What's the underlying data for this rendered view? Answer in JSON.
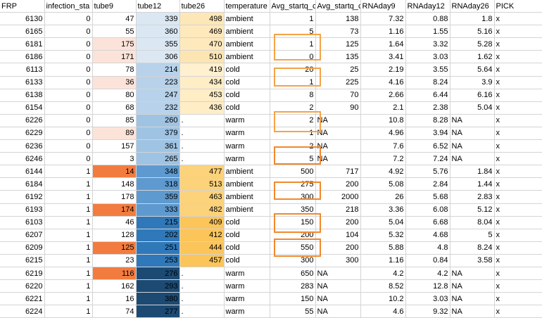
{
  "headers": [
    "FRP",
    "infection_sta",
    "tube9",
    "tube12",
    "tube26",
    "temperature",
    "Avg_startq_c",
    "Avg_startq_c",
    "RNAday9",
    "RNAday12",
    "RNAday26",
    "PICK"
  ],
  "rows": [
    {
      "FRP": "6130",
      "inf": "0",
      "t9": "47",
      "t12": "339",
      "t26": "498",
      "temp": "ambient",
      "avg1": "1",
      "avg2": "138",
      "r9": "7.32",
      "r12": "0.88",
      "r26": "1.8",
      "pick": "x",
      "c9": "#ffffff",
      "c12": "#dbe8f4",
      "c26": "#fde7b6"
    },
    {
      "FRP": "6165",
      "inf": "0",
      "t9": "55",
      "t12": "360",
      "t26": "469",
      "temp": "ambient",
      "avg1": "5",
      "avg2": "73",
      "r9": "1.16",
      "r12": "1.55",
      "r26": "5.16",
      "pick": "x",
      "c9": "#ffffff",
      "c12": "#dbe8f4",
      "c26": "#fee9bd"
    },
    {
      "FRP": "6181",
      "inf": "0",
      "t9": "175",
      "t12": "355",
      "t26": "470",
      "temp": "ambient",
      "avg1": "1",
      "avg2": "125",
      "r9": "1.64",
      "r12": "3.32",
      "r26": "5.28",
      "pick": "x",
      "c9": "#fce3d9",
      "c12": "#dbe8f4",
      "c26": "#fee9bd"
    },
    {
      "FRP": "6186",
      "inf": "0",
      "t9": "171",
      "t12": "306",
      "t26": "510",
      "temp": "ambient",
      "avg1": "0",
      "avg2": "135",
      "r9": "3.41",
      "r12": "3.03",
      "r26": "1.62",
      "pick": "x",
      "c9": "#fce3d9",
      "c12": "#dbe8f4",
      "c26": "#fde5b1"
    },
    {
      "FRP": "6113",
      "inf": "0",
      "t9": "78",
      "t12": "214",
      "t26": "419",
      "temp": "cold",
      "avg1": "20",
      "avg2": "25",
      "r9": "2.19",
      "r12": "3.55",
      "r26": "5.64",
      "pick": "x",
      "c9": "#ffffff",
      "c12": "#b7d2ea",
      "c26": "#fff0cf"
    },
    {
      "FRP": "6133",
      "inf": "0",
      "t9": "36",
      "t12": "223",
      "t26": "434",
      "temp": "cold",
      "avg1": "1",
      "avg2": "225",
      "r9": "4.16",
      "r12": "8.24",
      "r26": "3.9",
      "pick": "x",
      "c9": "#fce3d9",
      "c12": "#b7d2ea",
      "c26": "#ffedc6"
    },
    {
      "FRP": "6138",
      "inf": "0",
      "t9": "80",
      "t12": "247",
      "t26": "453",
      "temp": "cold",
      "avg1": "8",
      "avg2": "70",
      "r9": "2.66",
      "r12": "6.44",
      "r26": "6.16",
      "pick": "x",
      "c9": "#ffffff",
      "c12": "#b7d2ea",
      "c26": "#ffedc6"
    },
    {
      "FRP": "6154",
      "inf": "0",
      "t9": "68",
      "t12": "232",
      "t26": "436",
      "temp": "cold",
      "avg1": "2",
      "avg2": "90",
      "r9": "2.1",
      "r12": "2.38",
      "r26": "5.04",
      "pick": "x",
      "c9": "#ffffff",
      "c12": "#b7d2ea",
      "c26": "#ffedc6"
    },
    {
      "FRP": "6226",
      "inf": "0",
      "t9": "85",
      "t12": "260",
      "t26": ".",
      "temp": "warm",
      "avg1": "2",
      "avg2": "NA",
      "r9": "10.8",
      "r12": "8.28",
      "r26": "NA",
      "pick": "x",
      "c9": "#ffffff",
      "c12": "#9fc3e3",
      "c26": "#ffffff"
    },
    {
      "FRP": "6229",
      "inf": "0",
      "t9": "89",
      "t12": "379",
      "t26": ".",
      "temp": "warm",
      "avg1": "1",
      "avg2": "NA",
      "r9": "4.96",
      "r12": "3.94",
      "r26": "NA",
      "pick": "x",
      "c9": "#fce3d9",
      "c12": "#9fc3e3",
      "c26": "#ffffff"
    },
    {
      "FRP": "6236",
      "inf": "0",
      "t9": "157",
      "t12": "361",
      "t26": ".",
      "temp": "warm",
      "avg1": "2",
      "avg2": "NA",
      "r9": "7.6",
      "r12": "6.52",
      "r26": "NA",
      "pick": "x",
      "c9": "#ffffff",
      "c12": "#9fc3e3",
      "c26": "#ffffff"
    },
    {
      "FRP": "6246",
      "inf": "0",
      "t9": "3",
      "t12": "265",
      "t26": ".",
      "temp": "warm",
      "avg1": "5",
      "avg2": "NA",
      "r9": "7.2",
      "r12": "7.24",
      "r26": "NA",
      "pick": "x",
      "c9": "#ffffff",
      "c12": "#9fc3e3",
      "c26": "#ffffff"
    },
    {
      "FRP": "6144",
      "inf": "1",
      "t9": "14",
      "t12": "348",
      "t26": "477",
      "temp": "ambient",
      "avg1": "500",
      "avg2": "717",
      "r9": "4.92",
      "r12": "5.76",
      "r26": "1.84",
      "pick": "x",
      "c9": "#f27c3f",
      "c12": "#5e9acf",
      "c26": "#fcd27a"
    },
    {
      "FRP": "6184",
      "inf": "1",
      "t9": "148",
      "t12": "318",
      "t26": "513",
      "temp": "ambient",
      "avg1": "275",
      "avg2": "200",
      "r9": "5.08",
      "r12": "2.84",
      "r26": "1.44",
      "pick": "x",
      "c9": "#ffffff",
      "c12": "#5e9acf",
      "c26": "#fcd27a"
    },
    {
      "FRP": "6192",
      "inf": "1",
      "t9": "178",
      "t12": "359",
      "t26": "463",
      "temp": "ambient",
      "avg1": "300",
      "avg2": "2000",
      "r9": "26",
      "r12": "5.68",
      "r26": "2.83",
      "pick": "x",
      "c9": "#ffffff",
      "c12": "#5e9acf",
      "c26": "#fcd27a"
    },
    {
      "FRP": "6193",
      "inf": "1",
      "t9": "174",
      "t12": "333",
      "t26": "482",
      "temp": "ambient",
      "avg1": "350",
      "avg2": "218",
      "r9": "3.36",
      "r12": "6.08",
      "r26": "5.12",
      "pick": "x",
      "c9": "#f27c3f",
      "c12": "#5e9acf",
      "c26": "#fcd27a"
    },
    {
      "FRP": "6103",
      "inf": "1",
      "t9": "46",
      "t12": "215",
      "t26": "409",
      "temp": "cold",
      "avg1": "150",
      "avg2": "200",
      "r9": "5.04",
      "r12": "6.68",
      "r26": "8.04",
      "pick": "x",
      "c9": "#ffffff",
      "c12": "#2f78b9",
      "c26": "#fbc55a"
    },
    {
      "FRP": "6207",
      "inf": "1",
      "t9": "128",
      "t12": "202",
      "t26": "412",
      "temp": "cold",
      "avg1": "200",
      "avg2": "104",
      "r9": "5.32",
      "r12": "4.68",
      "r26": "5",
      "pick": "x",
      "c9": "#ffffff",
      "c12": "#2f78b9",
      "c26": "#fbc55a"
    },
    {
      "FRP": "6209",
      "inf": "1",
      "t9": "125",
      "t12": "251",
      "t26": "444",
      "temp": "cold",
      "avg1": "550",
      "avg2": "200",
      "r9": "5.88",
      "r12": "4.8",
      "r26": "8.24",
      "pick": "x",
      "c9": "#f27c3f",
      "c12": "#2f78b9",
      "c26": "#fbc55a"
    },
    {
      "FRP": "6215",
      "inf": "1",
      "t9": "23",
      "t12": "253",
      "t26": "457",
      "temp": "cold",
      "avg1": "300",
      "avg2": "300",
      "r9": "1.16",
      "r12": "0.84",
      "r26": "3.58",
      "pick": "x",
      "c9": "#ffffff",
      "c12": "#2f78b9",
      "c26": "#fbc55a"
    },
    {
      "FRP": "6219",
      "inf": "1",
      "t9": "116",
      "t12": "276",
      "t26": ".",
      "temp": "warm",
      "avg1": "650",
      "avg2": "NA",
      "r9": "4.2",
      "r12": "4.2",
      "r26": "NA",
      "pick": "x",
      "c9": "#f27c3f",
      "c12": "#1c4a73",
      "c26": "#ffffff"
    },
    {
      "FRP": "6220",
      "inf": "1",
      "t9": "162",
      "t12": "293",
      "t26": ".",
      "temp": "warm",
      "avg1": "283",
      "avg2": "NA",
      "r9": "8.52",
      "r12": "12.8",
      "r26": "NA",
      "pick": "x",
      "c9": "#ffffff",
      "c12": "#1c4a73",
      "c26": "#ffffff"
    },
    {
      "FRP": "6221",
      "inf": "1",
      "t9": "16",
      "t12": "380",
      "t26": ".",
      "temp": "warm",
      "avg1": "150",
      "avg2": "NA",
      "r9": "10.2",
      "r12": "3.03",
      "r26": "NA",
      "pick": "x",
      "c9": "#ffffff",
      "c12": "#1c4a73",
      "c26": "#ffffff"
    },
    {
      "FRP": "6224",
      "inf": "1",
      "t9": "74",
      "t12": "277",
      "t26": ".",
      "temp": "warm",
      "avg1": "55",
      "avg2": "NA",
      "r9": "4.6",
      "r12": "9.32",
      "r26": "NA",
      "pick": "x",
      "c9": "#ffffff",
      "c12": "#1c4a73",
      "c26": "#ffffff"
    }
  ]
}
